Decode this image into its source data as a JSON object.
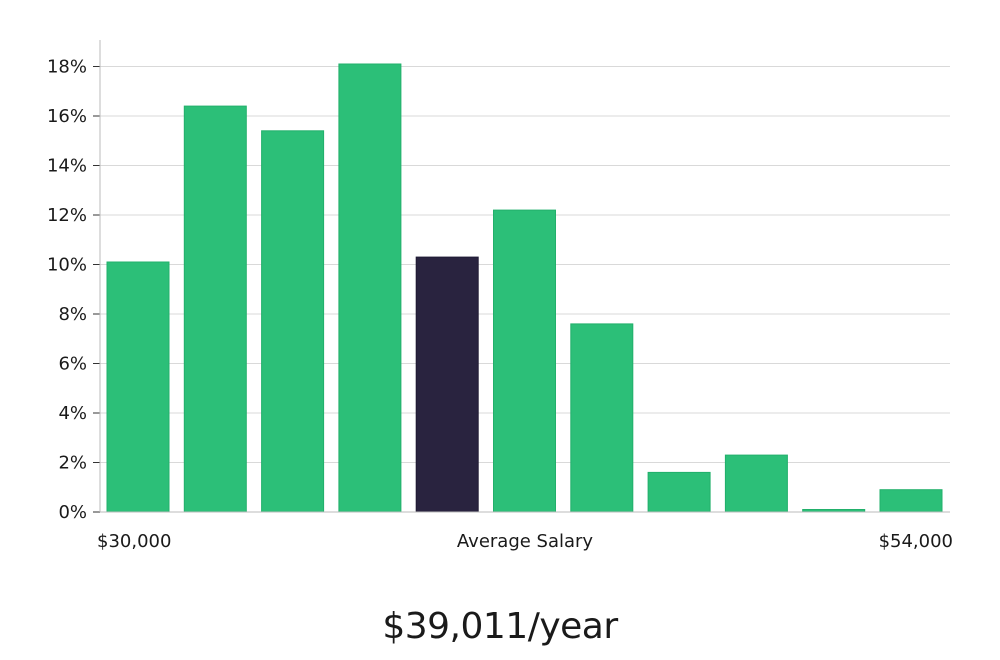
{
  "chart_data": {
    "type": "bar",
    "title": "",
    "xlabel": "Average Salary",
    "ylabel": "",
    "ylim": [
      0,
      19
    ],
    "yticks": [
      0,
      2,
      4,
      6,
      8,
      10,
      12,
      14,
      16,
      18
    ],
    "ytick_suffix": "%",
    "grid": true,
    "values": [
      10.1,
      16.4,
      15.4,
      18.1,
      10.3,
      12.2,
      7.6,
      1.6,
      2.3,
      0.1,
      0.9
    ],
    "highlight_index": 4,
    "x_min_label": "$30,000",
    "x_max_label": "$54,000",
    "colors": {
      "bar": "#2cbf78",
      "bar_edge": "#22b06b",
      "highlight": "#29233f",
      "grid": "#d9d9d9",
      "axis": "#bbbbbb"
    }
  },
  "summary": {
    "salary_text": "$39,011/year"
  }
}
